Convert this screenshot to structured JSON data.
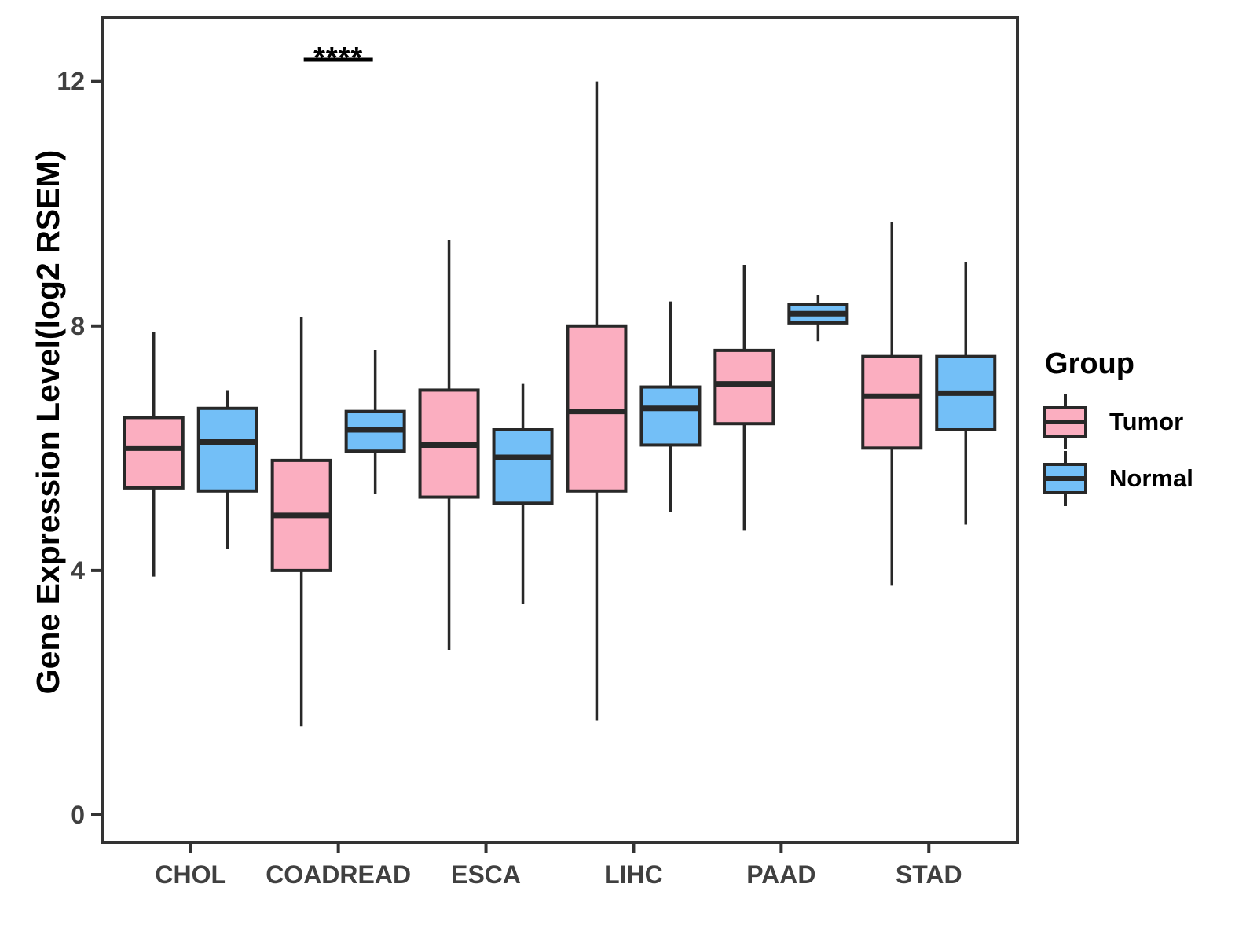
{
  "colors": {
    "tumor_fill": "#FBAEC0",
    "normal_fill": "#73BFF7",
    "box_stroke": "#282828",
    "panel_border": "#333333",
    "tick_text": "#404040",
    "annotation_color": "#000000"
  },
  "chart_data": {
    "type": "boxplot",
    "title": "",
    "xlabel": "",
    "ylabel": "Gene Expression Level(log2 RSEM)",
    "legend_title": "Group",
    "legend_position": "right",
    "grid": false,
    "y_ticks": [
      0,
      4,
      8,
      12
    ],
    "ylim": [
      -0.45,
      13.05
    ],
    "categories": [
      "CHOL",
      "COADREAD",
      "ESCA",
      "LIHC",
      "PAAD",
      "STAD"
    ],
    "series": [
      {
        "name": "Tumor",
        "color": "#FBAEC0",
        "boxes": [
          {
            "category": "CHOL",
            "whisker_low": 3.9,
            "q1": 5.35,
            "median": 6.0,
            "q3": 6.5,
            "whisker_high": 7.9
          },
          {
            "category": "COADREAD",
            "whisker_low": 1.45,
            "q1": 4.0,
            "median": 4.9,
            "q3": 5.8,
            "whisker_high": 8.15
          },
          {
            "category": "ESCA",
            "whisker_low": 2.7,
            "q1": 5.2,
            "median": 6.05,
            "q3": 6.95,
            "whisker_high": 9.4
          },
          {
            "category": "LIHC",
            "whisker_low": 1.55,
            "q1": 5.3,
            "median": 6.6,
            "q3": 8.0,
            "whisker_high": 12.0
          },
          {
            "category": "PAAD",
            "whisker_low": 4.65,
            "q1": 6.4,
            "median": 7.05,
            "q3": 7.6,
            "whisker_high": 9.0
          },
          {
            "category": "STAD",
            "whisker_low": 3.75,
            "q1": 6.0,
            "median": 6.85,
            "q3": 7.5,
            "whisker_high": 9.7
          }
        ]
      },
      {
        "name": "Normal",
        "color": "#73BFF7",
        "boxes": [
          {
            "category": "CHOL",
            "whisker_low": 4.35,
            "q1": 5.3,
            "median": 6.1,
            "q3": 6.65,
            "whisker_high": 6.95
          },
          {
            "category": "COADREAD",
            "whisker_low": 5.25,
            "q1": 5.95,
            "median": 6.3,
            "q3": 6.6,
            "whisker_high": 7.6
          },
          {
            "category": "ESCA",
            "whisker_low": 3.45,
            "q1": 5.1,
            "median": 5.85,
            "q3": 6.3,
            "whisker_high": 7.05
          },
          {
            "category": "LIHC",
            "whisker_low": 4.95,
            "q1": 6.05,
            "median": 6.65,
            "q3": 7.0,
            "whisker_high": 8.4
          },
          {
            "category": "PAAD",
            "whisker_low": 7.75,
            "q1": 8.05,
            "median": 8.2,
            "q3": 8.35,
            "whisker_high": 8.5
          },
          {
            "category": "STAD",
            "whisker_low": 4.75,
            "q1": 6.3,
            "median": 6.9,
            "q3": 7.5,
            "whisker_high": 9.05
          }
        ]
      }
    ],
    "annotations": [
      {
        "category": "COADREAD",
        "label": "****"
      }
    ]
  }
}
